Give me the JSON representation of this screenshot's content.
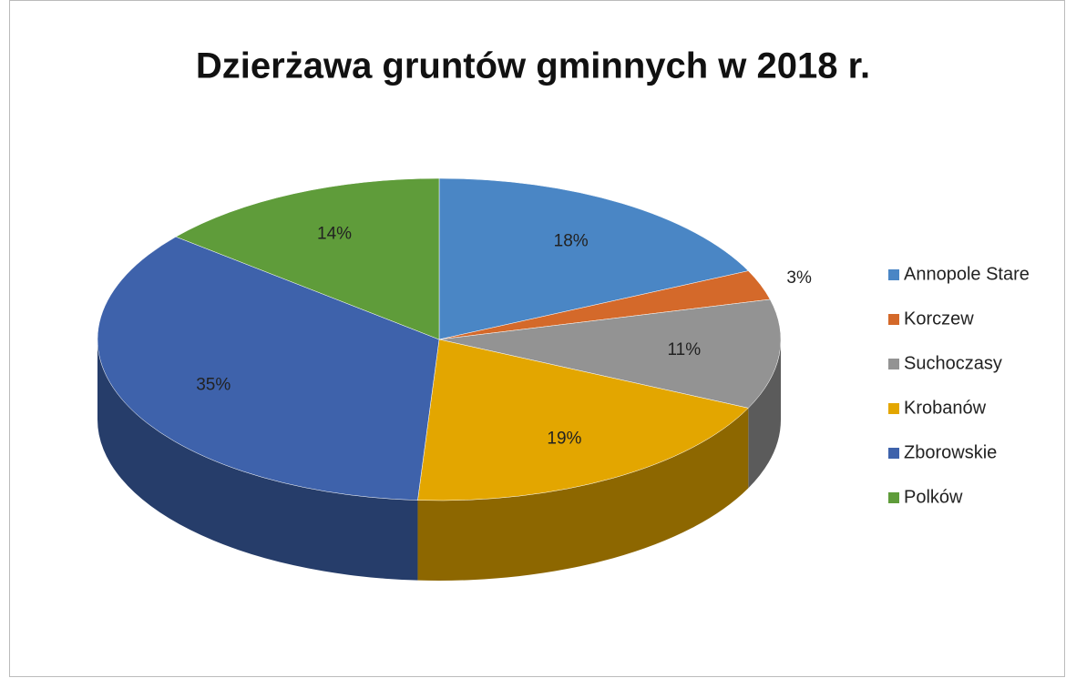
{
  "chart_data": {
    "type": "pie",
    "title": "Dzierżawa gruntów gminnych w 2018 r.",
    "categories": [
      "Annopole Stare",
      "Korczew",
      "Suchoczasy",
      "Krobanów",
      "Zborowskie",
      "Polków"
    ],
    "values": [
      18,
      3,
      11,
      19,
      35,
      14
    ],
    "value_labels": [
      "18%",
      "3%",
      "11%",
      "19%",
      "35%",
      "14%"
    ],
    "colors": [
      "#4a86c5",
      "#d4692a",
      "#939393",
      "#e3a600",
      "#3e62ab",
      "#5f9c3a"
    ],
    "legend": "right"
  }
}
